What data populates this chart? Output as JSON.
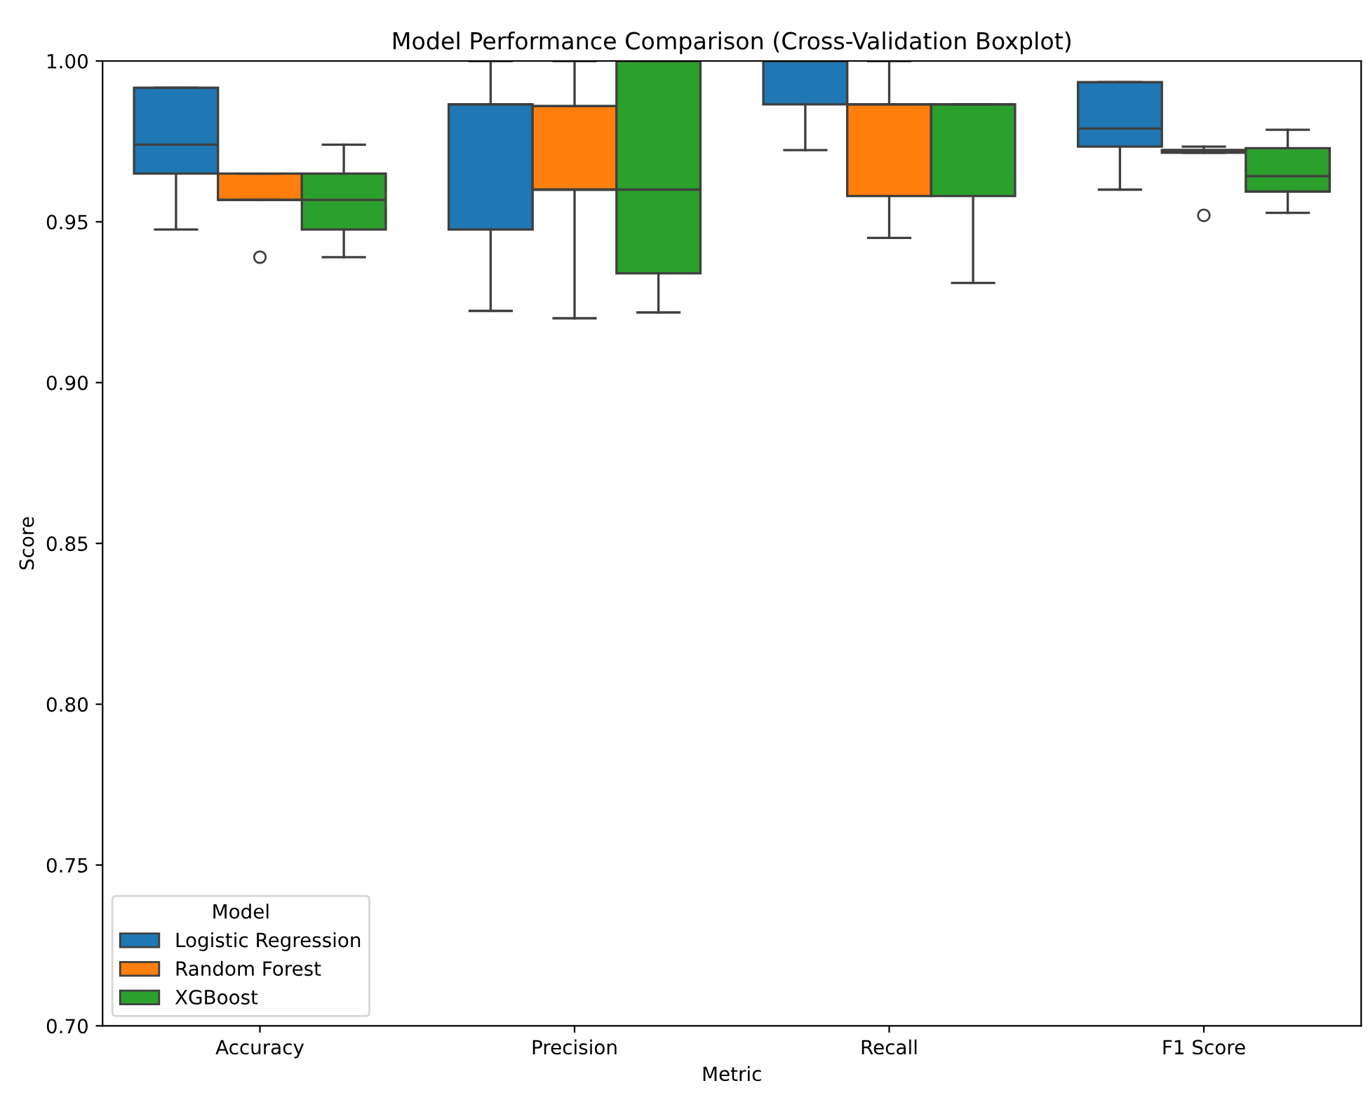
{
  "chart_data": {
    "type": "box",
    "title": "Model Performance Comparison (Cross-Validation Boxplot)",
    "xlabel": "Metric",
    "ylabel": "Score",
    "legend_title": "Model",
    "legend": "bottom left",
    "grid": false,
    "categories": [
      "Accuracy",
      "Precision",
      "Recall",
      "F1 Score"
    ],
    "ylim": [
      0.7,
      1.0
    ],
    "yticks": [
      {
        "value": 0.7,
        "label": "0.70"
      },
      {
        "value": 0.75,
        "label": "0.75"
      },
      {
        "value": 0.8,
        "label": "0.80"
      },
      {
        "value": 0.85,
        "label": "0.85"
      },
      {
        "value": 0.9,
        "label": "0.90"
      },
      {
        "value": 0.95,
        "label": "0.95"
      },
      {
        "value": 1.0,
        "label": "1.00"
      }
    ],
    "series": [
      {
        "name": "Logistic Regression",
        "color": "#1f77b4",
        "boxes": [
          {
            "low": 0.9476,
            "q1": 0.965,
            "median": 0.974,
            "q3": 0.9917,
            "high": 0.9917
          },
          {
            "low": 0.9223,
            "q1": 0.9476,
            "median": 0.9865,
            "q3": 0.9865,
            "high": 1.0
          },
          {
            "low": 0.9723,
            "q1": 0.9865,
            "median": 1.0,
            "q3": 1.0,
            "high": 1.0
          },
          {
            "low": 0.96,
            "q1": 0.9734,
            "median": 0.979,
            "q3": 0.9934,
            "high": 0.9934
          }
        ]
      },
      {
        "name": "Random Forest",
        "color": "#ff7f0e",
        "boxes": [
          {
            "low": 0.9568,
            "q1": 0.9568,
            "median": 0.9568,
            "q3": 0.965,
            "high": 0.965,
            "outliers": [
              0.939
            ]
          },
          {
            "low": 0.92,
            "q1": 0.96,
            "median": 0.96,
            "q3": 0.986,
            "high": 1.0
          },
          {
            "low": 0.945,
            "q1": 0.958,
            "median": 0.9865,
            "q3": 0.9865,
            "high": 1.0
          },
          {
            "low": 0.9715,
            "q1": 0.9715,
            "median": 0.9723,
            "q3": 0.9723,
            "high": 0.9734,
            "outliers": [
              0.952
            ]
          }
        ]
      },
      {
        "name": "XGBoost",
        "color": "#2ca02c",
        "boxes": [
          {
            "low": 0.939,
            "q1": 0.9476,
            "median": 0.9568,
            "q3": 0.965,
            "high": 0.974
          },
          {
            "low": 0.9218,
            "q1": 0.934,
            "median": 0.96,
            "q3": 1.0,
            "high": 1.0
          },
          {
            "low": 0.931,
            "q1": 0.958,
            "median": 0.9865,
            "q3": 0.9865,
            "high": 0.9865
          },
          {
            "low": 0.9528,
            "q1": 0.9594,
            "median": 0.9642,
            "q3": 0.9729,
            "high": 0.9786
          }
        ]
      }
    ]
  }
}
